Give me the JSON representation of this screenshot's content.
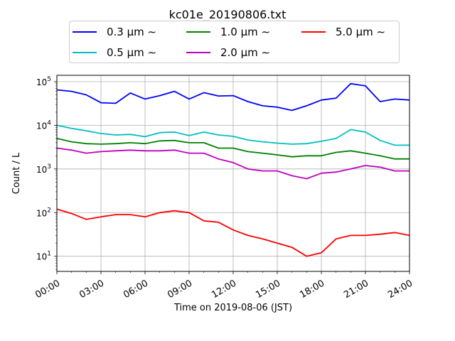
{
  "chart_data": {
    "type": "line",
    "title": "kc01e_20190806.txt",
    "xlabel": "Time on 2019-08-06 (JST)",
    "ylabel": "Count / L",
    "yscale": "log",
    "xlim": [
      0,
      24
    ],
    "ylim": [
      4.5,
      140000
    ],
    "x_ticks": [
      0,
      3,
      6,
      9,
      12,
      15,
      18,
      21,
      24
    ],
    "x_tick_labels": [
      "00:00",
      "03:00",
      "06:00",
      "09:00",
      "12:00",
      "15:00",
      "18:00",
      "21:00",
      "24:00"
    ],
    "y_ticks": [
      10,
      100,
      1000,
      10000,
      100000
    ],
    "y_tick_labels": [
      [
        "10",
        "1"
      ],
      [
        "10",
        "2"
      ],
      [
        "10",
        "3"
      ],
      [
        "10",
        "4"
      ],
      [
        "10",
        "5"
      ]
    ],
    "grid": true,
    "legend_position": "top-center",
    "x": [
      0,
      1,
      2,
      3,
      4,
      5,
      6,
      7,
      8,
      9,
      10,
      11,
      12,
      13,
      14,
      15,
      16,
      17,
      18,
      19,
      20,
      21,
      22,
      23,
      24
    ],
    "series": [
      {
        "name": "0.3 μm ∼",
        "color": "#0000ff",
        "values": [
          65000,
          60000,
          50000,
          33000,
          32000,
          55000,
          40000,
          48000,
          60000,
          40000,
          56000,
          47000,
          48000,
          35000,
          28000,
          26000,
          22000,
          28000,
          38000,
          42000,
          90000,
          80000,
          35000,
          40000,
          38000
        ]
      },
      {
        "name": "0.5 μm ∼",
        "color": "#00bfbf",
        "values": [
          10000,
          8500,
          7500,
          6500,
          6000,
          6200,
          5500,
          6800,
          7000,
          5800,
          7000,
          6000,
          5600,
          4600,
          4200,
          3900,
          3700,
          3800,
          4300,
          5000,
          8000,
          7000,
          4500,
          3500,
          3500
        ]
      },
      {
        "name": "1.0 μm ∼",
        "color": "#008000",
        "values": [
          5000,
          4200,
          3800,
          3700,
          3800,
          4000,
          3800,
          4400,
          4500,
          4000,
          4000,
          3000,
          3000,
          2500,
          2300,
          2100,
          1900,
          2000,
          2000,
          2400,
          2600,
          2300,
          2000,
          1700,
          1700
        ]
      },
      {
        "name": "2.0 μm ∼",
        "color": "#bf00bf",
        "values": [
          3000,
          2700,
          2300,
          2500,
          2600,
          2700,
          2600,
          2600,
          2700,
          2300,
          2300,
          1700,
          1400,
          1000,
          900,
          900,
          700,
          600,
          800,
          850,
          1000,
          1200,
          1100,
          900,
          900
        ]
      },
      {
        "name": "5.0 μm ∼",
        "color": "#ff0000",
        "values": [
          120,
          95,
          70,
          80,
          90,
          90,
          80,
          100,
          110,
          100,
          65,
          60,
          40,
          30,
          25,
          20,
          16,
          10,
          12,
          25,
          30,
          30,
          32,
          35,
          30
        ]
      }
    ]
  }
}
